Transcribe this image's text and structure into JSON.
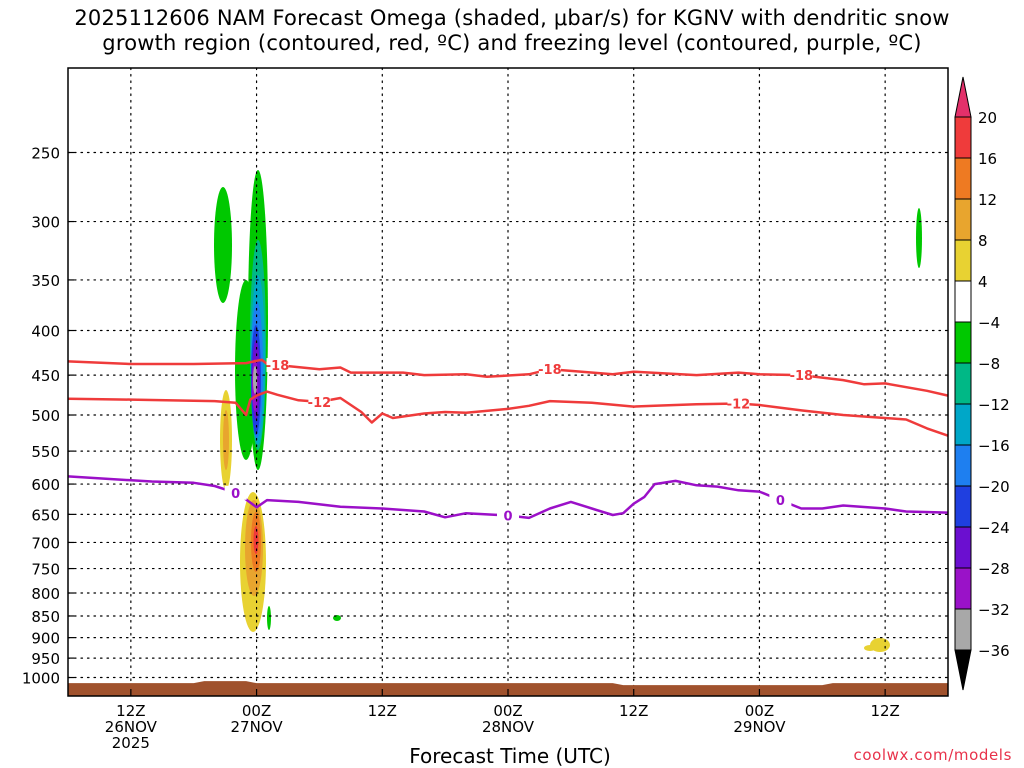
{
  "title": {
    "line1": "2025112606 NAM Forecast Omega (shaded, μbar/s) for KGNV with dendritic snow",
    "line2": "growth region (contoured, red, ºC) and freezing level (contoured, purple, ºC)"
  },
  "credit": "coolwx.com/models",
  "colors": {
    "dgz_contour": "#ef3b3b",
    "freezing_contour": "#9b10c8",
    "ground": "#a0522d",
    "frame": "#000000"
  },
  "chart_data": {
    "type": "heatmap",
    "xlabel": "Forecast Time (UTC)",
    "ylabel": "",
    "y_axis": {
      "scale": "log",
      "inverted": true,
      "unit": "hPa",
      "range": [
        1050,
        200
      ],
      "ticks": [
        250,
        300,
        350,
        400,
        450,
        500,
        550,
        600,
        650,
        700,
        750,
        800,
        850,
        900,
        950,
        1000
      ]
    },
    "x_axis": {
      "unit": "hours since 2025-11-26 06Z",
      "range": [
        0,
        84
      ],
      "ticks": [
        {
          "hour": 6,
          "label": [
            "12Z",
            "26NOV",
            "2025"
          ]
        },
        {
          "hour": 18,
          "label": [
            "00Z",
            "27NOV"
          ]
        },
        {
          "hour": 30,
          "label": [
            "12Z"
          ]
        },
        {
          "hour": 42,
          "label": [
            "00Z",
            "28NOV"
          ]
        },
        {
          "hour": 54,
          "label": [
            "12Z"
          ]
        },
        {
          "hour": 66,
          "label": [
            "00Z",
            "29NOV"
          ]
        },
        {
          "hour": 78,
          "label": [
            "12Z"
          ]
        }
      ]
    },
    "grid": true,
    "colorbar": {
      "position": "right",
      "levels": [
        20,
        16,
        12,
        8,
        4,
        -4,
        -8,
        -12,
        -16,
        -20,
        -24,
        -28,
        -32,
        -36
      ],
      "colors": [
        "#e3306a",
        "#ef3b3b",
        "#ee7a22",
        "#e8a52e",
        "#e8d232",
        "#ffffff",
        "#00c800",
        "#00b886",
        "#00a7c8",
        "#1e7ff0",
        "#1f3fe0",
        "#6b0fd0",
        "#9a12c8",
        "#a8a8a8",
        "#000000"
      ]
    },
    "contours": [
      {
        "color": "red",
        "label": "-18",
        "values": [
          [
            0,
            434
          ],
          [
            6,
            437
          ],
          [
            12,
            437
          ],
          [
            17,
            436
          ],
          [
            18.5,
            432
          ],
          [
            19,
            437
          ],
          [
            24,
            443
          ],
          [
            26,
            441
          ],
          [
            27,
            447
          ],
          [
            32,
            447
          ],
          [
            34,
            450
          ],
          [
            38,
            449
          ],
          [
            40,
            452
          ],
          [
            44,
            449
          ],
          [
            46,
            443
          ],
          [
            48,
            445
          ],
          [
            52,
            449
          ],
          [
            54,
            446
          ],
          [
            60,
            450
          ],
          [
            64,
            447
          ],
          [
            66,
            449
          ],
          [
            70,
            450
          ],
          [
            74,
            456
          ],
          [
            76,
            461
          ],
          [
            78,
            460
          ],
          [
            82,
            469
          ],
          [
            84,
            475
          ]
        ]
      },
      {
        "color": "red",
        "label": "-12",
        "values": [
          [
            0,
            479
          ],
          [
            6,
            480
          ],
          [
            14,
            482
          ],
          [
            16,
            484
          ],
          [
            17,
            500
          ],
          [
            17.4,
            480
          ],
          [
            18,
            475
          ],
          [
            19,
            470
          ],
          [
            20,
            474
          ],
          [
            22,
            481
          ],
          [
            24,
            483
          ],
          [
            26,
            478
          ],
          [
            28,
            496
          ],
          [
            29,
            510
          ],
          [
            30,
            498
          ],
          [
            31,
            504
          ],
          [
            34,
            498
          ],
          [
            36,
            496
          ],
          [
            38,
            497
          ],
          [
            42,
            492
          ],
          [
            44,
            488
          ],
          [
            46,
            482
          ],
          [
            50,
            484
          ],
          [
            54,
            489
          ],
          [
            56,
            488
          ],
          [
            60,
            486
          ],
          [
            64,
            485
          ],
          [
            66,
            487
          ],
          [
            70,
            494
          ],
          [
            74,
            500
          ],
          [
            80,
            506
          ],
          [
            82,
            518
          ],
          [
            84,
            528
          ]
        ]
      },
      {
        "color": "purple",
        "label": "0",
        "values": [
          [
            0,
            588
          ],
          [
            4,
            592
          ],
          [
            8,
            596
          ],
          [
            12,
            598
          ],
          [
            14,
            603
          ],
          [
            16,
            614
          ],
          [
            17,
            625
          ],
          [
            18,
            638
          ],
          [
            19,
            626
          ],
          [
            22,
            629
          ],
          [
            26,
            637
          ],
          [
            30,
            640
          ],
          [
            34,
            645
          ],
          [
            36,
            655
          ],
          [
            38,
            648
          ],
          [
            42,
            652
          ],
          [
            44,
            656
          ],
          [
            46,
            640
          ],
          [
            48,
            629
          ],
          [
            50,
            640
          ],
          [
            52,
            651
          ],
          [
            53,
            648
          ],
          [
            54,
            632
          ],
          [
            55,
            621
          ],
          [
            56,
            600
          ],
          [
            58,
            595
          ],
          [
            60,
            602
          ],
          [
            62,
            604
          ],
          [
            64,
            610
          ],
          [
            66,
            612
          ],
          [
            68,
            626
          ],
          [
            70,
            640
          ],
          [
            72,
            640
          ],
          [
            74,
            635
          ],
          [
            78,
            640
          ],
          [
            80,
            645
          ],
          [
            84,
            647
          ]
        ]
      }
    ],
    "ground_level_hpa": 1015
  }
}
